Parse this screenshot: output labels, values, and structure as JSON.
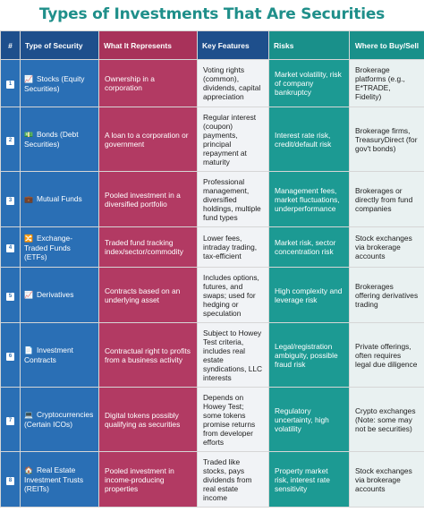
{
  "title": "Types of Investments That Are Securities",
  "headers": {
    "num": "#",
    "type": "Type of Security",
    "rep": "What It Represents",
    "feat": "Key Features",
    "risk": "Risks",
    "where": "Where to Buy/Sell"
  },
  "rows": [
    {
      "num": "1",
      "icon": "📈",
      "type": "Stocks (Equity Securities)",
      "rep": "Ownership in a corporation",
      "feat": "Voting rights (common), dividends, capital appreciation",
      "risk": "Market volatility, risk of company bankruptcy",
      "where": "Brokerage platforms (e.g., E*TRADE, Fidelity)"
    },
    {
      "num": "2",
      "icon": "💵",
      "type": "Bonds (Debt Securities)",
      "rep": "A loan to a corporation or government",
      "feat": "Regular interest (coupon) payments, principal repayment at maturity",
      "risk": "Interest rate risk, credit/default risk",
      "where": "Brokerage firms, TreasuryDirect (for gov't bonds)"
    },
    {
      "num": "3",
      "icon": "💼",
      "type": "Mutual Funds",
      "rep": "Pooled investment in a diversified portfolio",
      "feat": "Professional management, diversified holdings, multiple fund types",
      "risk": "Management fees, market fluctuations, underperformance",
      "where": "Brokerages or directly from fund companies"
    },
    {
      "num": "4",
      "icon": "🔀",
      "type": "Exchange-Traded Funds (ETFs)",
      "rep": "Traded fund tracking index/sector/commodity",
      "feat": "Lower fees, intraday trading, tax-efficient",
      "risk": "Market risk, sector concentration risk",
      "where": "Stock exchanges via brokerage accounts"
    },
    {
      "num": "5",
      "icon": "📈",
      "type": "Derivatives",
      "rep": "Contracts based on an underlying asset",
      "feat": "Includes options, futures, and swaps; used for hedging or speculation",
      "risk": "High complexity and leverage risk",
      "where": "Brokerages offering derivatives trading"
    },
    {
      "num": "6",
      "icon": "📄",
      "type": "Investment Contracts",
      "rep": "Contractual right to profits from a business activity",
      "feat": "Subject to Howey Test criteria, includes real estate syndications, LLC interests",
      "risk": "Legal/registration ambiguity, possible fraud risk",
      "where": "Private offerings, often requires legal due diligence"
    },
    {
      "num": "7",
      "icon": "💻",
      "type": "Cryptocurrencies (Certain ICOs)",
      "rep": "Digital tokens possibly qualifying as securities",
      "feat": "Depends on Howey Test; some tokens promise returns from developer efforts",
      "risk": "Regulatory uncertainty, high volatility",
      "where": "Crypto exchanges (Note: some may not be securities)"
    },
    {
      "num": "8",
      "icon": "🏠",
      "type": "Real Estate Investment Trusts (REITs)",
      "rep": "Pooled investment in income-producing properties",
      "feat": "Traded like stocks, pays dividends from real estate income",
      "risk": "Property market risk, interest rate sensitivity",
      "where": "Stock exchanges via brokerage accounts"
    }
  ],
  "colors": {
    "title": "#1f8f8a",
    "type_column": "#2a6fb5",
    "represents_column": "#b23a63",
    "features_column": "#f1f3f6",
    "risks_column": "#1c9a93",
    "where_column": "#e9f1f1"
  }
}
